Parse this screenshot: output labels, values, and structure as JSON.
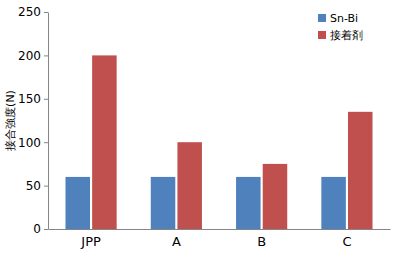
{
  "chart_data": {
    "type": "bar",
    "y_label": "接合強度(N)",
    "categories": [
      "JPP",
      "A",
      "B",
      "C"
    ],
    "series": [
      {
        "name": "Sn-Bi",
        "color": "#4f81bd",
        "values": [
          60,
          60,
          60,
          60
        ]
      },
      {
        "name": "接着剤",
        "color": "#c0504d",
        "values": [
          200,
          100,
          75,
          135
        ]
      }
    ],
    "ylim": [
      0,
      250
    ],
    "yticks": [
      0,
      50,
      100,
      150,
      200,
      250
    ],
    "grid": false,
    "legend": "upper right"
  }
}
